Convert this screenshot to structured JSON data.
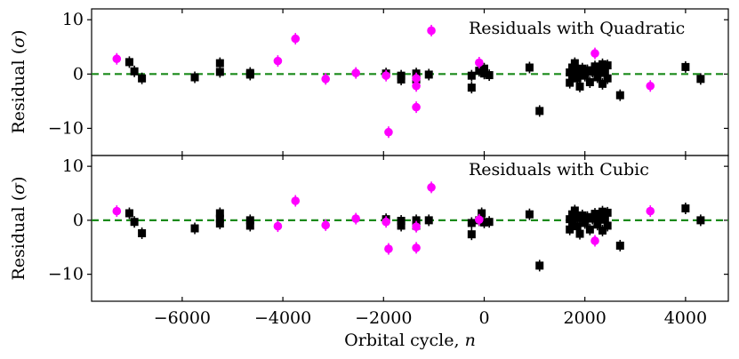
{
  "chart_data": [
    {
      "type": "scatter",
      "annotation": "Residuals with Quadratic",
      "ylabel_main": "Residual (",
      "ylabel_sym": "σ",
      "ylabel_end": ")",
      "ylim": [
        -15,
        12
      ],
      "yticks": [
        10,
        0,
        -10
      ],
      "ytick_labels": [
        "10",
        "0",
        "−10"
      ],
      "reference_line_y": 0,
      "series": [
        {
          "color": "#000000",
          "marker": "square",
          "points": [
            [
              -7050,
              2.2
            ],
            [
              -6950,
              0.5
            ],
            [
              -6800,
              -0.8
            ],
            [
              -5750,
              -0.6
            ],
            [
              -5250,
              0.4
            ],
            [
              -5250,
              2.0
            ],
            [
              -4650,
              0.2
            ],
            [
              -4650,
              -0.1
            ],
            [
              -1950,
              0.1
            ],
            [
              -1650,
              -0.3
            ],
            [
              -1650,
              -1.0
            ],
            [
              -1350,
              0.1
            ],
            [
              -1350,
              -1.0
            ],
            [
              -1100,
              -0.1
            ],
            [
              -250,
              -0.3
            ],
            [
              -250,
              -2.5
            ],
            [
              -100,
              0.6
            ],
            [
              0,
              1.0
            ],
            [
              0,
              0.1
            ],
            [
              100,
              -0.2
            ],
            [
              900,
              1.2
            ],
            [
              1100,
              -6.8
            ],
            [
              1700,
              -1.6
            ],
            [
              1700,
              0.3
            ],
            [
              1750,
              1.2
            ],
            [
              1750,
              -0.5
            ],
            [
              1800,
              2.0
            ],
            [
              1800,
              0.8
            ],
            [
              1850,
              -0.8
            ],
            [
              1900,
              0.5
            ],
            [
              1900,
              -2.3
            ],
            [
              1950,
              1.0
            ],
            [
              2000,
              -0.3
            ],
            [
              2050,
              0.7
            ],
            [
              2100,
              -1.5
            ],
            [
              2150,
              0.4
            ],
            [
              2200,
              1.4
            ],
            [
              2250,
              -0.6
            ],
            [
              2300,
              0.6
            ],
            [
              2350,
              1.8
            ],
            [
              2350,
              -1.8
            ],
            [
              2400,
              0.2
            ],
            [
              2450,
              1.6
            ],
            [
              2450,
              -0.8
            ],
            [
              2700,
              -3.9
            ],
            [
              4000,
              1.3
            ],
            [
              4300,
              -0.9
            ]
          ]
        },
        {
          "color": "#ff00ff",
          "marker": "circle",
          "points": [
            [
              -7300,
              2.8
            ],
            [
              -4100,
              2.4
            ],
            [
              -3750,
              6.5
            ],
            [
              -3150,
              -0.9
            ],
            [
              -2550,
              0.2
            ],
            [
              -1950,
              -0.3
            ],
            [
              -1900,
              -10.7
            ],
            [
              -1350,
              -0.8
            ],
            [
              -1350,
              -2.2
            ],
            [
              -1350,
              -6.1
            ],
            [
              -1050,
              8.0
            ],
            [
              -100,
              2.1
            ],
            [
              2200,
              3.8
            ],
            [
              3300,
              -2.2
            ]
          ]
        }
      ]
    },
    {
      "type": "scatter",
      "annotation": "Residuals with Cubic",
      "ylabel_main": "Residual (",
      "ylabel_sym": "σ",
      "ylabel_end": ")",
      "ylim": [
        -15,
        12
      ],
      "yticks": [
        10,
        0,
        -10
      ],
      "ytick_labels": [
        "10",
        "0",
        "−10"
      ],
      "reference_line_y": 0,
      "xlabel_main": "Orbital cycle, ",
      "xlabel_sym": "n",
      "xlim": [
        -7800,
        4850
      ],
      "xticks": [
        -6000,
        -4000,
        -2000,
        0,
        2000,
        4000
      ],
      "xtick_labels": [
        "−6000",
        "−4000",
        "−2000",
        "0",
        "2000",
        "4000"
      ],
      "series": [
        {
          "color": "#000000",
          "marker": "square",
          "points": [
            [
              -7050,
              1.3
            ],
            [
              -6950,
              -0.3
            ],
            [
              -6800,
              -2.4
            ],
            [
              -5750,
              -1.5
            ],
            [
              -5250,
              1.3
            ],
            [
              -5250,
              0.3
            ],
            [
              -5250,
              -0.6
            ],
            [
              -4650,
              0.0
            ],
            [
              -4650,
              -1.0
            ],
            [
              -1950,
              0.2
            ],
            [
              -1650,
              -0.1
            ],
            [
              -1650,
              -1.0
            ],
            [
              -1350,
              0.0
            ],
            [
              -1350,
              -1.0
            ],
            [
              -1100,
              0.0
            ],
            [
              -250,
              -0.5
            ],
            [
              -250,
              -2.6
            ],
            [
              -100,
              0.0
            ],
            [
              -50,
              1.3
            ],
            [
              0,
              -0.4
            ],
            [
              100,
              -0.3
            ],
            [
              900,
              1.1
            ],
            [
              1100,
              -8.4
            ],
            [
              1700,
              -1.7
            ],
            [
              1700,
              0.2
            ],
            [
              1750,
              1.1
            ],
            [
              1750,
              -0.6
            ],
            [
              1800,
              1.8
            ],
            [
              1800,
              0.6
            ],
            [
              1850,
              -1.1
            ],
            [
              1900,
              0.4
            ],
            [
              1900,
              -2.5
            ],
            [
              1950,
              0.9
            ],
            [
              2000,
              -0.5
            ],
            [
              2050,
              0.6
            ],
            [
              2100,
              -1.7
            ],
            [
              2150,
              0.3
            ],
            [
              2200,
              1.2
            ],
            [
              2250,
              -0.8
            ],
            [
              2300,
              0.5
            ],
            [
              2350,
              1.6
            ],
            [
              2350,
              -1.9
            ],
            [
              2400,
              0.1
            ],
            [
              2450,
              1.4
            ],
            [
              2450,
              -1.0
            ],
            [
              2700,
              -4.7
            ],
            [
              4000,
              2.2
            ],
            [
              4300,
              0.0
            ]
          ]
        },
        {
          "color": "#ff00ff",
          "marker": "circle",
          "points": [
            [
              -7300,
              1.7
            ],
            [
              -4100,
              -1.1
            ],
            [
              -3750,
              3.6
            ],
            [
              -3150,
              -0.9
            ],
            [
              -2550,
              0.3
            ],
            [
              -1950,
              -0.3
            ],
            [
              -1900,
              -5.3
            ],
            [
              -1350,
              -1.2
            ],
            [
              -1350,
              -5.1
            ],
            [
              -1050,
              6.1
            ],
            [
              -100,
              0.1
            ],
            [
              2200,
              -3.8
            ],
            [
              3300,
              1.7
            ]
          ]
        }
      ]
    }
  ]
}
